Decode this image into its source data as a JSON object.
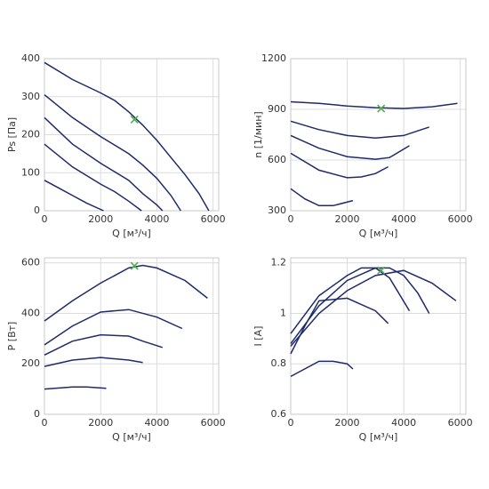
{
  "chart_data": [
    {
      "type": "line",
      "ylabel": "Ps [Па]",
      "xlabel": "Q [м³/ч]",
      "xlim": [
        0,
        6200
      ],
      "xticks": [
        0,
        2000,
        4000,
        6000
      ],
      "ylim": [
        0,
        400
      ],
      "yticks": [
        0,
        100,
        200,
        300,
        400
      ],
      "grid": true,
      "series": [
        {
          "color": "#1f2a6b",
          "x": [
            0,
            1000,
            2000,
            2500,
            3000,
            3500,
            4000,
            4500,
            5000,
            5500,
            5850
          ],
          "values": [
            390,
            345,
            310,
            290,
            260,
            225,
            185,
            140,
            95,
            45,
            0
          ]
        },
        {
          "color": "#1f2a6b",
          "x": [
            0,
            1000,
            2000,
            3000,
            3500,
            4000,
            4500,
            4850
          ],
          "values": [
            305,
            245,
            195,
            150,
            120,
            85,
            40,
            0
          ]
        },
        {
          "color": "#1f2a6b",
          "x": [
            0,
            1000,
            2000,
            3000,
            3500,
            4000,
            4200
          ],
          "values": [
            245,
            175,
            125,
            80,
            45,
            15,
            0
          ]
        },
        {
          "color": "#1f2a6b",
          "x": [
            0,
            1000,
            2000,
            2500,
            3000,
            3450
          ],
          "values": [
            175,
            115,
            70,
            50,
            25,
            0
          ]
        },
        {
          "color": "#1f2a6b",
          "x": [
            0,
            500,
            1000,
            1500,
            2100
          ],
          "values": [
            80,
            60,
            40,
            20,
            0
          ]
        }
      ],
      "operating_point": {
        "x": 3200,
        "y": 240,
        "color": "#4caf50"
      }
    },
    {
      "type": "line",
      "ylabel": "n [1/мин]",
      "xlabel": "Q [м³/ч]",
      "xlim": [
        0,
        6200
      ],
      "xticks": [
        0,
        2000,
        4000,
        6000
      ],
      "ylim": [
        300,
        1200
      ],
      "yticks": [
        300,
        600,
        900,
        1200
      ],
      "grid": true,
      "series": [
        {
          "color": "#1f2a6b",
          "x": [
            0,
            1000,
            2000,
            3000,
            4000,
            5000,
            5900
          ],
          "values": [
            945,
            935,
            920,
            910,
            905,
            915,
            935
          ]
        },
        {
          "color": "#1f2a6b",
          "x": [
            0,
            1000,
            2000,
            3000,
            4000,
            4900
          ],
          "values": [
            830,
            780,
            745,
            730,
            745,
            795
          ]
        },
        {
          "color": "#1f2a6b",
          "x": [
            0,
            1000,
            2000,
            3000,
            3500,
            4200
          ],
          "values": [
            745,
            670,
            620,
            605,
            615,
            685
          ]
        },
        {
          "color": "#1f2a6b",
          "x": [
            0,
            1000,
            2000,
            2500,
            3000,
            3450
          ],
          "values": [
            640,
            540,
            495,
            500,
            520,
            560
          ]
        },
        {
          "color": "#1f2a6b",
          "x": [
            0,
            500,
            1000,
            1500,
            2200
          ],
          "values": [
            430,
            370,
            330,
            330,
            360
          ]
        }
      ],
      "operating_point": {
        "x": 3200,
        "y": 905,
        "color": "#4caf50"
      }
    },
    {
      "type": "line",
      "ylabel": "P [Вт]",
      "xlabel": "Q [м³/ч]",
      "xlim": [
        0,
        6200
      ],
      "xticks": [
        0,
        2000,
        4000,
        6000
      ],
      "ylim": [
        0,
        620
      ],
      "yticks": [
        0,
        200,
        400,
        600
      ],
      "grid": true,
      "series": [
        {
          "color": "#1f2a6b",
          "x": [
            0,
            1000,
            2000,
            3000,
            3500,
            4000,
            5000,
            5800
          ],
          "values": [
            370,
            450,
            520,
            580,
            590,
            580,
            530,
            460
          ]
        },
        {
          "color": "#1f2a6b",
          "x": [
            0,
            1000,
            2000,
            3000,
            4000,
            4900
          ],
          "values": [
            275,
            350,
            405,
            415,
            385,
            340
          ]
        },
        {
          "color": "#1f2a6b",
          "x": [
            0,
            1000,
            2000,
            3000,
            3500,
            4200
          ],
          "values": [
            235,
            290,
            315,
            310,
            290,
            265
          ]
        },
        {
          "color": "#1f2a6b",
          "x": [
            0,
            1000,
            2000,
            3000,
            3500
          ],
          "values": [
            190,
            215,
            225,
            215,
            205
          ]
        },
        {
          "color": "#1f2a6b",
          "x": [
            0,
            1000,
            1500,
            2200
          ],
          "values": [
            100,
            108,
            108,
            103
          ]
        }
      ],
      "operating_point": {
        "x": 3200,
        "y": 588,
        "color": "#4caf50"
      }
    },
    {
      "type": "line",
      "ylabel": "I [A]",
      "xlabel": "Q [м³/ч]",
      "xlim": [
        0,
        6200
      ],
      "xticks": [
        0,
        2000,
        4000,
        6000
      ],
      "ylim": [
        0.6,
        1.22
      ],
      "yticks": [
        0.6,
        0.8,
        1,
        1.2
      ],
      "grid": true,
      "series": [
        {
          "color": "#1f2a6b",
          "x": [
            0,
            1000,
            2000,
            3000,
            4000,
            5000,
            5850
          ],
          "values": [
            0.87,
            1.0,
            1.09,
            1.15,
            1.17,
            1.12,
            1.05
          ]
        },
        {
          "color": "#1f2a6b",
          "x": [
            0,
            1000,
            2000,
            3000,
            3500,
            4000,
            4500,
            4900
          ],
          "values": [
            0.88,
            1.03,
            1.13,
            1.18,
            1.18,
            1.15,
            1.08,
            1.0
          ]
        },
        {
          "color": "#1f2a6b",
          "x": [
            0,
            1000,
            2000,
            2500,
            3000,
            3500,
            4200
          ],
          "values": [
            0.92,
            1.07,
            1.15,
            1.18,
            1.18,
            1.14,
            1.01
          ]
        },
        {
          "color": "#1f2a6b",
          "x": [
            0,
            500,
            1000,
            2000,
            3000,
            3450
          ],
          "values": [
            0.84,
            0.95,
            1.05,
            1.06,
            1.01,
            0.96
          ]
        },
        {
          "color": "#1f2a6b",
          "x": [
            0,
            500,
            1000,
            1500,
            2000,
            2200
          ],
          "values": [
            0.75,
            0.78,
            0.81,
            0.81,
            0.8,
            0.78
          ]
        }
      ],
      "operating_point": {
        "x": 3200,
        "y": 1.17,
        "color": "#4caf50"
      }
    }
  ]
}
